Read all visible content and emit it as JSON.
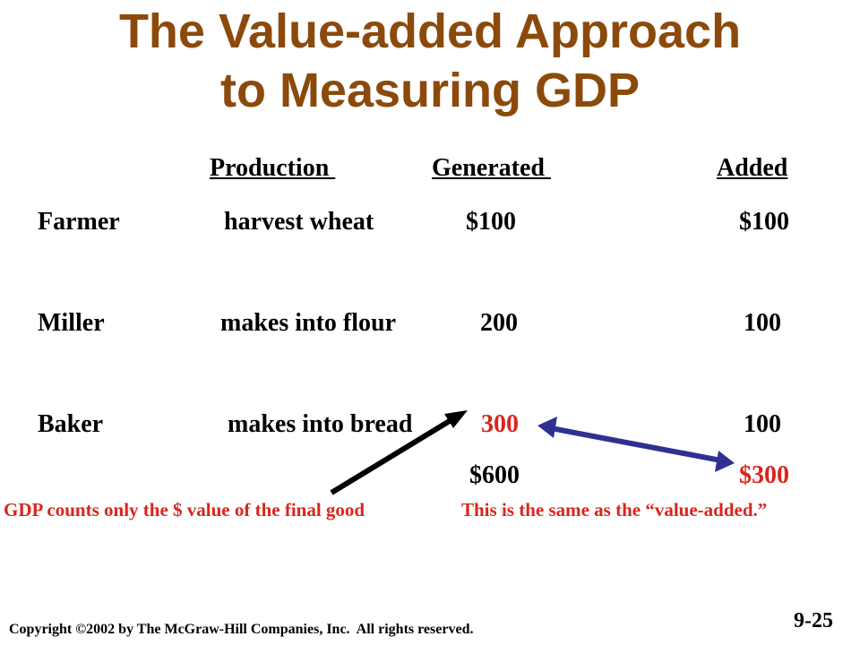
{
  "title": {
    "line1": "The Value-added Approach",
    "line2": "to Measuring GDP"
  },
  "headers": {
    "production": "Production ",
    "generated": "Generated ",
    "added": "Added"
  },
  "rows": [
    {
      "who": "Farmer",
      "activity": "harvest wheat",
      "generated": "$100",
      "added": "$100"
    },
    {
      "who": "Miller",
      "activity": "makes into flour",
      "generated": "200",
      "added": "100"
    },
    {
      "who": "Baker",
      "activity": "makes into bread",
      "generated": "300",
      "added": "100"
    }
  ],
  "totals": {
    "generated": "$600",
    "added": "$300"
  },
  "notes": {
    "final_good": "GDP counts only the $ value of the final good",
    "same_as": "This is the same as the “value-added.”"
  },
  "footer": {
    "copyright": "Copyright ©2002 by The McGraw-Hill Companies, Inc.  All rights reserved.",
    "slide_number": "9-25"
  },
  "colors": {
    "title": "#8B4A0B",
    "highlight": "#D9261C",
    "arrow_black": "#000000",
    "arrow_blue": "#2E3192"
  }
}
